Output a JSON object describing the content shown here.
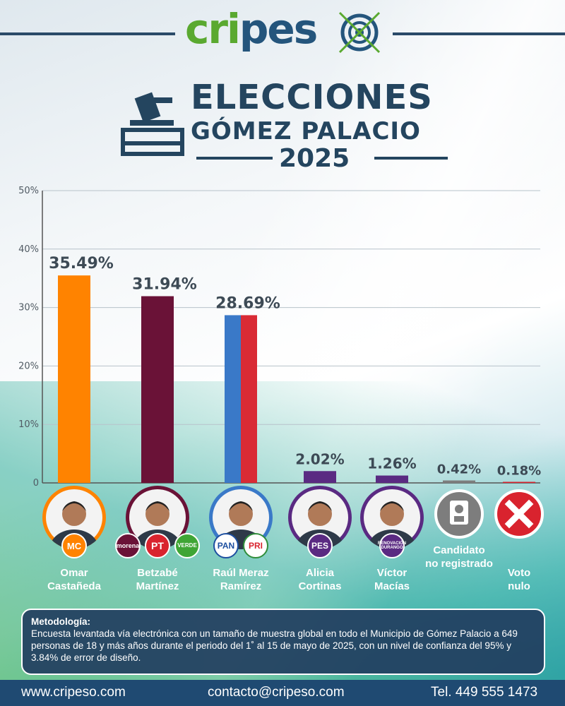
{
  "brand": {
    "logo_green": "cri",
    "logo_blue": "pes"
  },
  "title": {
    "line1": "ELECCIONES",
    "line2": "GÓMEZ PALACIO",
    "line3": "2025"
  },
  "chart_data": {
    "type": "bar",
    "categories": [
      "Omar Castañeda",
      "Betzabé Martínez",
      "Raúl Meraz Ramírez",
      "Alicia Cortinas",
      "Víctor Macías",
      "Candidato no registrado",
      "Voto nulo"
    ],
    "values": [
      35.49,
      31.94,
      28.69,
      2.02,
      1.26,
      0.42,
      0.18
    ],
    "value_labels": [
      "35.49%",
      "31.94%",
      "28.69%",
      "2.02%",
      "1.26%",
      "0.42%",
      "0.18%"
    ],
    "bar_colors": [
      [
        "#ff8300"
      ],
      [
        "#6a1237"
      ],
      [
        "#3a79c8",
        "#d92b35"
      ],
      [
        "#5a2a82"
      ],
      [
        "#5a2a82"
      ],
      [
        "#7d7d7d"
      ],
      [
        "#d9232e"
      ]
    ],
    "yticks": [
      "0",
      "10%",
      "20%",
      "30%",
      "40%",
      "50%"
    ],
    "ylim": [
      0,
      50
    ],
    "grid": true
  },
  "candidates": [
    {
      "name1": "Omar",
      "name2": "Castañeda",
      "parties": [
        "MOVIMIENTO CIUDADANO"
      ],
      "ring": "#ff8300"
    },
    {
      "name1": "Betzabé",
      "name2": "Martínez",
      "parties": [
        "morena",
        "PT",
        "VERDE"
      ],
      "ring": "#6a1237"
    },
    {
      "name1": "Raúl Meraz",
      "name2": "Ramírez",
      "parties": [
        "PAN",
        "PRI"
      ],
      "ring": "#3a79c8"
    },
    {
      "name1": "Alicia",
      "name2": "Cortinas",
      "parties": [
        "PES"
      ],
      "ring": "#5a2a82"
    },
    {
      "name1": "Víctor",
      "name2": "Macías",
      "parties": [
        "RENOVACIÓN DURANGO"
      ],
      "ring": "#5a2a82"
    },
    {
      "name1": "Candidato",
      "name2": "no registrado",
      "parties": [],
      "ring": "#7d7d7d"
    },
    {
      "name1": "Voto",
      "name2": "nulo",
      "parties": [],
      "ring": "#d9232e"
    }
  ],
  "methodology": {
    "title": "Metodología:",
    "text": "Encuesta levantada vía electrónica con un tamaño de muestra global en todo el Municipio de Gómez Palacio a 649 personas de 18 y más años durante el periodo del 1˚ al 15 de mayo de 2025, con un nivel de confianza del 95% y 3.84% de error de diseño."
  },
  "footer": {
    "web": "www.cripeso.com",
    "email": "contacto@cripeso.com",
    "phone": "Tel. 449 555 1473"
  },
  "colors": {
    "navy": "#24455f",
    "footer": "#1f4a72",
    "green": "#5aa930"
  }
}
